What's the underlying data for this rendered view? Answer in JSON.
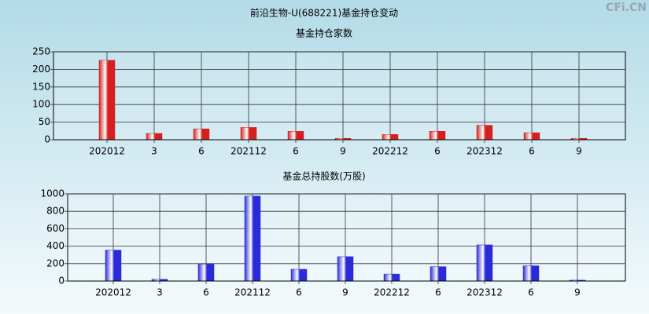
{
  "header": {
    "title": "前沿生物-U(688221)基金持仓变动",
    "watermark": "CFi.CN"
  },
  "chart_data": [
    {
      "type": "bar",
      "title": "基金持仓家数",
      "categories": [
        "202012",
        "3",
        "6",
        "202112",
        "6",
        "9",
        "202212",
        "6",
        "202312",
        "6",
        "9"
      ],
      "values": [
        226,
        18,
        31,
        35,
        24,
        4,
        15,
        24,
        41,
        20,
        4
      ],
      "color": "#d42020",
      "ylim": [
        0,
        250
      ],
      "yticks": [
        0,
        50,
        100,
        150,
        200,
        250
      ],
      "grid": true
    },
    {
      "type": "bar",
      "title": "基金总持股数(万股)",
      "categories": [
        "202012",
        "3",
        "6",
        "202112",
        "6",
        "9",
        "202212",
        "6",
        "202312",
        "6",
        "9"
      ],
      "values": [
        355,
        20,
        195,
        975,
        135,
        280,
        80,
        165,
        415,
        175,
        10
      ],
      "color": "#2a2ad8",
      "ylim": [
        0,
        1000
      ],
      "yticks": [
        0,
        200,
        400,
        600,
        800,
        1000
      ],
      "grid": true
    }
  ]
}
